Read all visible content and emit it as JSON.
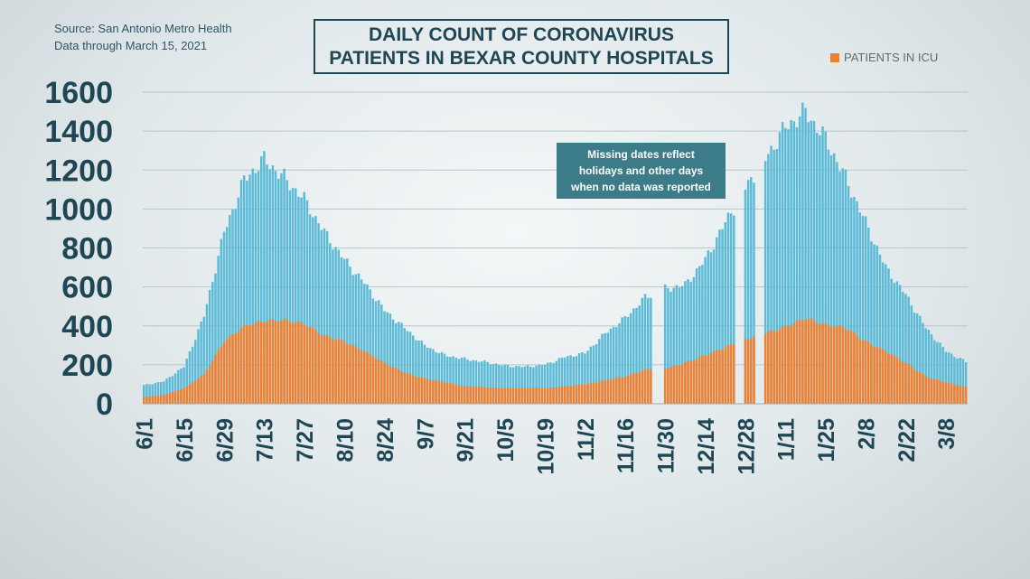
{
  "header": {
    "source_line1": "Source: San Antonio Metro Health",
    "source_line2": "Data through March 15, 2021",
    "title_line1": "DAILY COUNT OF CORONAVIRUS",
    "title_line2": "PATIENTS IN BEXAR COUNTY HOSPITALS"
  },
  "annotation": {
    "line1": "Missing dates reflect",
    "line2": "holidays and other days",
    "line3": "when no data was reported"
  },
  "colors": {
    "total": "#5bbad6",
    "icu": "#f07f2f",
    "text": "#1f4655"
  },
  "chart_data": {
    "type": "bar",
    "stacked_overlay": true,
    "x_start": "2020-06-01",
    "x_end": "2021-03-15",
    "x_ticks": [
      "6/1",
      "6/15",
      "6/29",
      "7/13",
      "7/27",
      "8/10",
      "8/24",
      "9/7",
      "9/21",
      "10/5",
      "10/19",
      "11/2",
      "11/16",
      "11/30",
      "12/14",
      "12/28",
      "1/11",
      "1/25",
      "2/8",
      "2/22",
      "3/8"
    ],
    "ylim": [
      0,
      1600
    ],
    "yticks": [
      0,
      200,
      400,
      600,
      800,
      1000,
      1200,
      1400,
      1600
    ],
    "grid": true,
    "legend": {
      "placement": "top-right",
      "entries": [
        "PATIENTS IN ICU"
      ]
    },
    "missing_dates": [
      "2020-11-26",
      "2020-11-27",
      "2020-11-28",
      "2020-11-29",
      "2020-12-25",
      "2020-12-26",
      "2020-12-27",
      "2021-01-01",
      "2021-01-02",
      "2021-01-03"
    ],
    "series": [
      {
        "name": "",
        "key": "total",
        "points": [
          [
            "2020-06-01",
            95
          ],
          [
            "2020-06-08",
            115
          ],
          [
            "2020-06-15",
            190
          ],
          [
            "2020-06-22",
            450
          ],
          [
            "2020-06-29",
            880
          ],
          [
            "2020-07-06",
            1150
          ],
          [
            "2020-07-13",
            1255
          ],
          [
            "2020-07-20",
            1160
          ],
          [
            "2020-07-27",
            1050
          ],
          [
            "2020-08-03",
            880
          ],
          [
            "2020-08-10",
            740
          ],
          [
            "2020-08-17",
            620
          ],
          [
            "2020-08-24",
            480
          ],
          [
            "2020-08-31",
            390
          ],
          [
            "2020-09-07",
            300
          ],
          [
            "2020-09-14",
            250
          ],
          [
            "2020-09-21",
            230
          ],
          [
            "2020-09-28",
            215
          ],
          [
            "2020-10-05",
            195
          ],
          [
            "2020-10-12",
            190
          ],
          [
            "2020-10-19",
            200
          ],
          [
            "2020-10-26",
            240
          ],
          [
            "2020-11-02",
            260
          ],
          [
            "2020-11-09",
            360
          ],
          [
            "2020-11-16",
            440
          ],
          [
            "2020-11-23",
            545
          ],
          [
            "2020-11-30",
            590
          ],
          [
            "2020-12-07",
            610
          ],
          [
            "2020-12-14",
            740
          ],
          [
            "2020-12-21",
            930
          ],
          [
            "2020-12-28",
            1110
          ],
          [
            "2021-01-04",
            1260
          ],
          [
            "2021-01-11",
            1420
          ],
          [
            "2021-01-18",
            1500
          ],
          [
            "2021-01-25",
            1360
          ],
          [
            "2021-02-01",
            1160
          ],
          [
            "2021-02-08",
            930
          ],
          [
            "2021-02-15",
            700
          ],
          [
            "2021-02-22",
            560
          ],
          [
            "2021-03-01",
            390
          ],
          [
            "2021-03-08",
            270
          ],
          [
            "2021-03-15",
            215
          ]
        ]
      },
      {
        "name": "PATIENTS IN ICU",
        "key": "icu",
        "points": [
          [
            "2020-06-01",
            35
          ],
          [
            "2020-06-08",
            45
          ],
          [
            "2020-06-15",
            80
          ],
          [
            "2020-06-22",
            150
          ],
          [
            "2020-06-29",
            320
          ],
          [
            "2020-07-06",
            400
          ],
          [
            "2020-07-13",
            425
          ],
          [
            "2020-07-20",
            430
          ],
          [
            "2020-07-27",
            410
          ],
          [
            "2020-08-03",
            350
          ],
          [
            "2020-08-10",
            320
          ],
          [
            "2020-08-17",
            270
          ],
          [
            "2020-08-24",
            210
          ],
          [
            "2020-08-31",
            160
          ],
          [
            "2020-09-07",
            130
          ],
          [
            "2020-09-14",
            110
          ],
          [
            "2020-09-21",
            90
          ],
          [
            "2020-09-28",
            85
          ],
          [
            "2020-10-05",
            80
          ],
          [
            "2020-10-12",
            80
          ],
          [
            "2020-10-19",
            80
          ],
          [
            "2020-10-26",
            90
          ],
          [
            "2020-11-02",
            100
          ],
          [
            "2020-11-09",
            120
          ],
          [
            "2020-11-16",
            140
          ],
          [
            "2020-11-23",
            175
          ],
          [
            "2020-11-30",
            180
          ],
          [
            "2020-12-07",
            210
          ],
          [
            "2020-12-14",
            250
          ],
          [
            "2020-12-21",
            290
          ],
          [
            "2020-12-28",
            330
          ],
          [
            "2021-01-04",
            360
          ],
          [
            "2021-01-11",
            395
          ],
          [
            "2021-01-18",
            440
          ],
          [
            "2021-01-25",
            405
          ],
          [
            "2021-02-01",
            390
          ],
          [
            "2021-02-08",
            320
          ],
          [
            "2021-02-15",
            270
          ],
          [
            "2021-02-22",
            210
          ],
          [
            "2021-03-01",
            140
          ],
          [
            "2021-03-08",
            110
          ],
          [
            "2021-03-15",
            85
          ]
        ]
      }
    ]
  }
}
